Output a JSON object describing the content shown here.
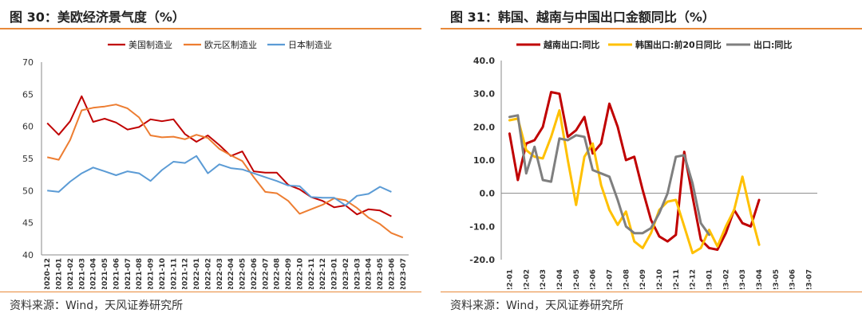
{
  "left": {
    "title": "图 30：美欧经济景气度（%）",
    "source": "资料来源：Wind，天风证券研究所"
  },
  "right": {
    "title": "图 31：韩国、越南与中国出口金额同比（%）",
    "source": "资料来源：Wind，天风证券研究所"
  },
  "colors": {
    "accent": "#e8893a",
    "red": "#c00000",
    "orange": "#ed7d31",
    "blue": "#5b9bd5",
    "yellow": "#ffc000",
    "gray": "#7f7f7f"
  },
  "chart_data": [
    {
      "type": "line",
      "title": "美欧经济景气度（%）",
      "categories": [
        "2020-12",
        "2021-01",
        "2021-02",
        "2021-03",
        "2021-04",
        "2021-05",
        "2021-06",
        "2021-07",
        "2021-08",
        "2021-09",
        "2021-10",
        "2021-11",
        "2021-12",
        "2022-01",
        "2022-02",
        "2022-03",
        "2022-04",
        "2022-05",
        "2022-06",
        "2022-07",
        "2022-08",
        "2022-09",
        "2022-10",
        "2022-11",
        "2022-12",
        "2023-01",
        "2023-02",
        "2023-03",
        "2023-04",
        "2023-05",
        "2023-06",
        "2023-07"
      ],
      "ylim": [
        40,
        70
      ],
      "yticks": [
        40,
        45,
        50,
        55,
        60,
        65,
        70
      ],
      "legend_position": "top",
      "series": [
        {
          "name": "美国制造业",
          "color": "#c00000",
          "values": [
            60.5,
            58.7,
            60.8,
            64.7,
            60.7,
            61.2,
            60.6,
            59.5,
            59.9,
            61.1,
            60.8,
            61.1,
            58.8,
            57.6,
            58.6,
            57.1,
            55.4,
            56.1,
            53.0,
            52.8,
            52.8,
            50.9,
            50.2,
            49.0,
            48.4,
            47.4,
            47.7,
            46.3,
            47.1,
            46.9,
            46.0,
            null
          ]
        },
        {
          "name": "欧元区制造业",
          "color": "#ed7d31",
          "values": [
            55.2,
            54.8,
            57.9,
            62.5,
            62.9,
            63.1,
            63.4,
            62.8,
            61.4,
            58.6,
            58.3,
            58.4,
            58.0,
            58.7,
            58.2,
            56.5,
            55.5,
            54.6,
            52.1,
            49.8,
            49.6,
            48.4,
            46.4,
            47.1,
            47.8,
            48.8,
            48.5,
            47.3,
            45.8,
            44.8,
            43.4,
            42.7
          ]
        },
        {
          "name": "日本制造业",
          "color": "#5b9bd5",
          "values": [
            50.0,
            49.8,
            51.4,
            52.7,
            53.6,
            53.0,
            52.4,
            53.0,
            52.7,
            51.5,
            53.2,
            54.5,
            54.3,
            55.4,
            52.7,
            54.1,
            53.5,
            53.3,
            52.7,
            52.1,
            51.5,
            50.8,
            50.7,
            49.0,
            48.9,
            48.9,
            47.7,
            49.2,
            49.5,
            50.6,
            49.8,
            null
          ]
        }
      ]
    },
    {
      "type": "line",
      "title": "韩国、越南与中国出口金额同比（%）",
      "categories": [
        "2022-01",
        "2022-02",
        "2022-03",
        "2022-04",
        "2022-05",
        "2022-06",
        "2022-07",
        "2022-08",
        "2022-09",
        "2022-10",
        "2022-11",
        "2022-12",
        "2023-01",
        "2023-02",
        "2023-03",
        "2023-04",
        "2023-05",
        "2023-06",
        "2023-07"
      ],
      "ytick_labels": [
        "-20.0",
        "-10.0",
        "0.0",
        "10.0",
        "20.0",
        "30.0",
        "40.0"
      ],
      "ylim": [
        -20,
        40
      ],
      "legend_position": "top",
      "series": [
        {
          "name": "越南出口:同比",
          "color": "#c00000",
          "x": [
            0.0,
            0.5,
            1.0,
            1.5,
            2.0,
            2.5,
            3.0,
            3.5,
            4.0,
            4.5,
            5.0,
            5.5,
            6.0,
            6.5,
            7.0,
            7.5,
            8.0,
            8.5,
            9.0,
            9.5,
            10.0,
            10.5,
            11.0,
            11.5,
            12.0,
            12.5,
            13.0,
            13.5,
            14.0,
            14.5,
            15.0,
            15.5,
            16.0,
            16.5,
            17.0,
            17.5,
            18.0
          ],
          "values": [
            18.0,
            4.0,
            15.0,
            16.0,
            20.0,
            30.5,
            30.0,
            17.0,
            19.0,
            23.0,
            12.0,
            15.0,
            27.0,
            20.0,
            10.0,
            11.0,
            1.0,
            -8.0,
            -13.0,
            -14.5,
            -12.5,
            12.5,
            -1.0,
            -14.0,
            -16.5,
            -17.0,
            -12.0,
            -5.0,
            -9.0,
            -10.0,
            -2.0,
            null,
            null,
            null,
            null,
            null,
            null
          ]
        },
        {
          "name": "韩国出口:前20日同比",
          "color": "#ffc000",
          "x": [
            0.0,
            0.5,
            1.0,
            1.5,
            2.0,
            2.5,
            3.0,
            3.5,
            4.0,
            4.5,
            5.0,
            5.5,
            6.0,
            6.5,
            7.0,
            7.5,
            8.0,
            8.5,
            9.0,
            9.5,
            10.0,
            10.5,
            11.0,
            11.5,
            12.0,
            12.5,
            13.0,
            13.5,
            14.0,
            14.5,
            15.0,
            15.5,
            16.0,
            16.5,
            17.0,
            17.5,
            18.0
          ],
          "values": [
            22.0,
            22.5,
            13.0,
            11.0,
            10.5,
            17.0,
            25.0,
            10.0,
            -3.5,
            11.0,
            15.0,
            2.5,
            -5.0,
            -9.5,
            -5.5,
            -14.5,
            -16.5,
            -12.0,
            -5.0,
            -2.5,
            -2.0,
            -10.0,
            -18.0,
            -16.5,
            -11.0,
            -16.0,
            -10.0,
            -5.0,
            5.0,
            -6.0,
            -15.5,
            null,
            null,
            null,
            null,
            null,
            null
          ]
        },
        {
          "name": "出口:同比",
          "color": "#7f7f7f",
          "x": [
            0.0,
            0.5,
            1.0,
            1.5,
            2.0,
            2.5,
            3.0,
            3.5,
            4.0,
            4.5,
            5.0,
            5.5,
            6.0,
            6.5,
            7.0,
            7.5,
            8.0,
            8.5,
            9.0,
            9.5,
            10.0,
            10.5,
            11.0,
            11.5,
            12.0,
            12.5,
            13.0,
            13.5,
            14.0,
            14.5,
            15.0,
            15.5,
            16.0,
            16.5,
            17.0,
            17.5,
            18.0
          ],
          "values": [
            23.0,
            23.5,
            6.0,
            14.0,
            4.0,
            3.5,
            16.5,
            16.0,
            17.5,
            17.0,
            7.0,
            6.0,
            5.0,
            -2.0,
            -10.0,
            -12.0,
            -12.0,
            -10.5,
            -6.0,
            0.0,
            11.0,
            11.5,
            3.0,
            -9.0,
            -12.5,
            null,
            null,
            null,
            null,
            null,
            null,
            null,
            null,
            null,
            null,
            null,
            null
          ]
        }
      ]
    }
  ]
}
